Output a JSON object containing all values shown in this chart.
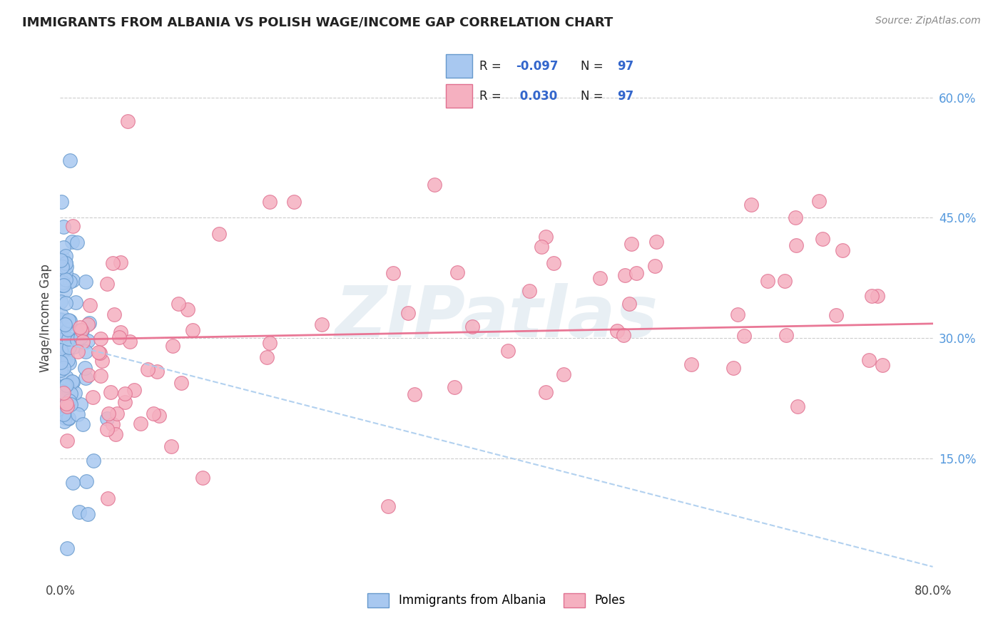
{
  "title": "IMMIGRANTS FROM ALBANIA VS POLISH WAGE/INCOME GAP CORRELATION CHART",
  "source": "Source: ZipAtlas.com",
  "ylabel": "Wage/Income Gap",
  "legend_label_blue": "Immigrants from Albania",
  "legend_label_pink": "Poles",
  "R_blue": -0.097,
  "N_blue": 97,
  "R_pink": 0.03,
  "N_pink": 97,
  "xlim": [
    0.0,
    0.8
  ],
  "ylim": [
    0.0,
    0.65
  ],
  "background_color": "#ffffff",
  "grid_color": "#cccccc",
  "title_color": "#222222",
  "blue_dot_color": "#a8c8f0",
  "blue_dot_edge": "#6699cc",
  "pink_dot_color": "#f5b0c0",
  "pink_dot_edge": "#e07090",
  "blue_line_color": "#aaccee",
  "pink_line_color": "#e87090",
  "watermark_color": "#ccdde8",
  "watermark_text": "ZIPatlas",
  "right_axis_color": "#5599dd",
  "source_color": "#888888",
  "legend_box_edge": "#cccccc",
  "r_label_color": "#222222",
  "r_value_color": "#3366cc"
}
